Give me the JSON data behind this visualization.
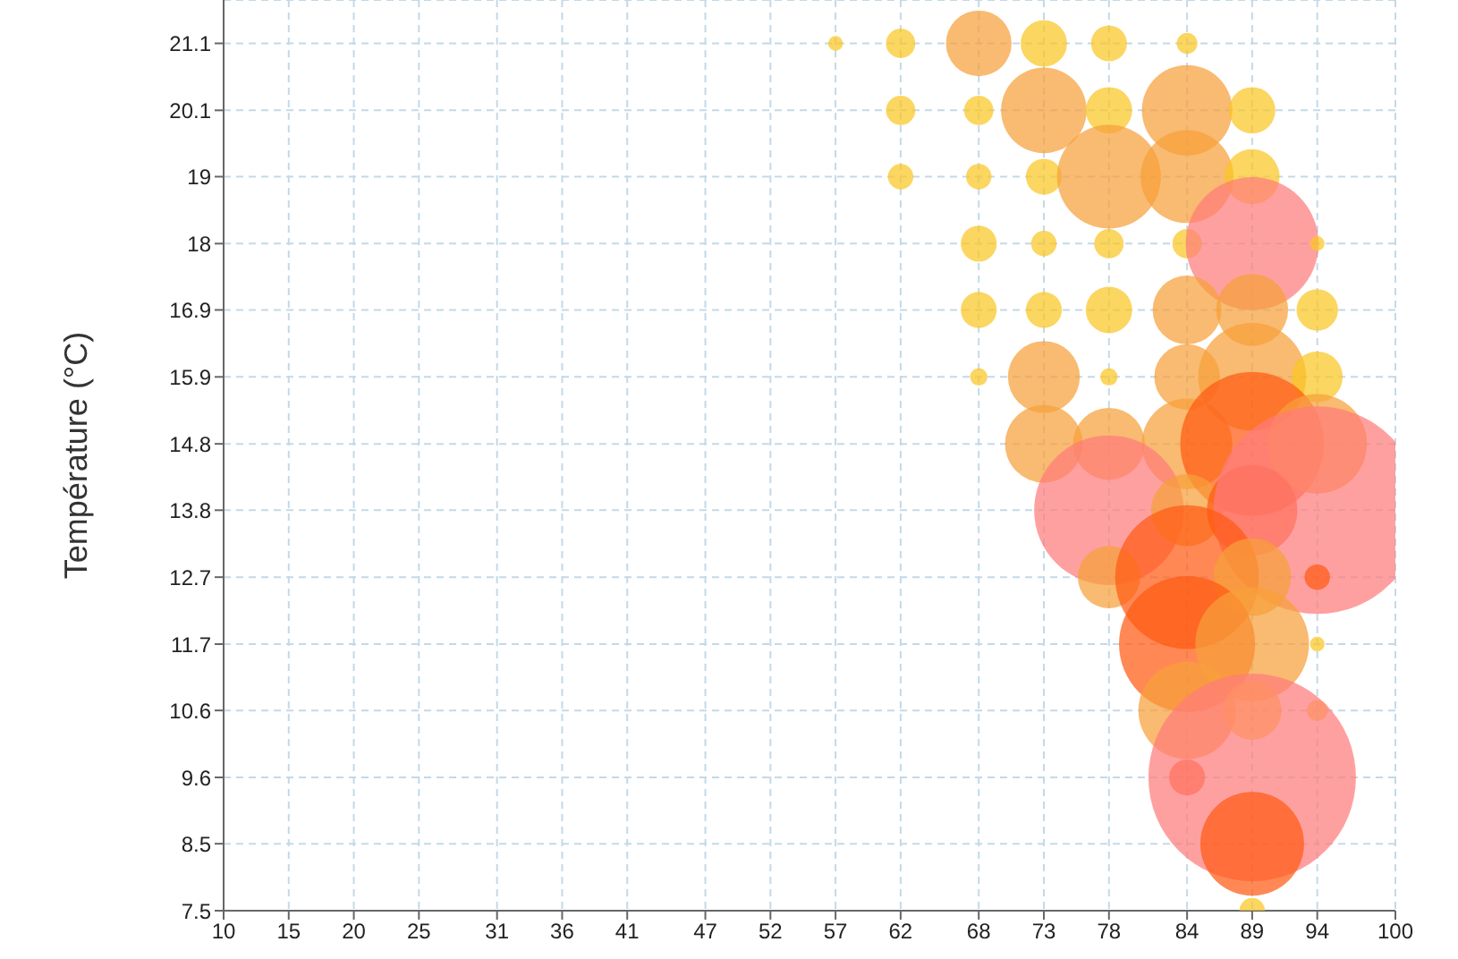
{
  "chart_data": {
    "type": "bubble",
    "ylabel": "Température (°C)",
    "x": [
      57,
      62,
      68,
      73,
      78,
      84,
      62,
      68,
      73,
      78,
      84,
      89,
      62,
      68,
      73,
      78,
      84,
      89,
      68,
      73,
      78,
      84,
      89,
      94,
      68,
      73,
      78,
      84,
      89,
      94,
      68,
      73,
      78,
      84,
      89,
      94,
      73,
      78,
      84,
      89,
      94,
      78,
      84,
      89,
      94,
      78,
      84,
      89,
      94,
      84,
      89,
      94,
      84,
      89,
      94,
      84,
      89,
      89,
      89
    ],
    "values": [
      21.1,
      21.1,
      21.1,
      21.1,
      21.1,
      21.1,
      20.05,
      20.05,
      20.05,
      20.05,
      20.05,
      20.05,
      19.01,
      19.01,
      19.01,
      19.01,
      19.01,
      19.01,
      17.96,
      17.96,
      17.96,
      17.96,
      17.96,
      17.96,
      16.92,
      16.92,
      16.92,
      16.92,
      16.92,
      16.92,
      15.87,
      15.87,
      15.87,
      15.87,
      15.87,
      15.87,
      14.82,
      14.82,
      14.82,
      14.82,
      14.82,
      13.78,
      13.78,
      13.78,
      13.78,
      12.73,
      12.73,
      12.73,
      12.73,
      11.68,
      11.68,
      11.68,
      10.64,
      10.64,
      10.64,
      9.59,
      9.59,
      8.55,
      7.5
    ],
    "sizes": [
      0.005,
      0.02,
      0.1,
      0.05,
      0.03,
      0.01,
      0.02,
      0.02,
      0.17,
      0.05,
      0.19,
      0.05,
      0.015,
      0.015,
      0.03,
      0.25,
      0.2,
      0.07,
      0.03,
      0.015,
      0.02,
      0.02,
      0.41,
      0.005,
      0.03,
      0.03,
      0.05,
      0.11,
      0.12,
      0.04,
      0.007,
      0.12,
      0.007,
      0.1,
      0.27,
      0.06,
      0.14,
      0.12,
      0.19,
      0.48,
      0.23,
      0.52,
      0.12,
      0.19,
      1,
      0.09,
      0.48,
      0.14,
      0.015,
      0.43,
      0.3,
      0.005,
      0.22,
      0.08,
      0.01,
      0.03,
      1,
      0.25,
      0.015
    ],
    "colors": [
      "#f9c623",
      "#f9c623",
      "#f7a03a",
      "#f9c623",
      "#f9c623",
      "#f9c623",
      "#f9c623",
      "#f9c623",
      "#f7a03a",
      "#f9c623",
      "#f7a03a",
      "#f9c623",
      "#f9c623",
      "#f9c623",
      "#f9c623",
      "#f7a03a",
      "#f7a03a",
      "#f9c623",
      "#f9c623",
      "#f9c623",
      "#f9c623",
      "#f9c623",
      "#ff7b7b",
      "#f9c623",
      "#f9c623",
      "#f9c623",
      "#f9c623",
      "#f7a03a",
      "#f7a03a",
      "#f9c623",
      "#f9c623",
      "#f7a03a",
      "#f9c623",
      "#f7a03a",
      "#f7a03a",
      "#f9c623",
      "#f7a03a",
      "#f7a03a",
      "#f7a03a",
      "#ff5a14",
      "#f7a03a",
      "#ff7b7b",
      "#f7a03a",
      "#ff5a14",
      "#ff7b7b",
      "#f7a03a",
      "#ff5a14",
      "#f7a03a",
      "#ff5a14",
      "#ff5a14",
      "#f7a03a",
      "#f9c623",
      "#f7a03a",
      "#f9c623",
      "#f9c623",
      "#ff5a14",
      "#ff7b7b",
      "#ff5a14",
      "#f9c623"
    ],
    "xlim": [
      10,
      100
    ],
    "xticks": [
      10,
      15,
      20,
      25,
      31,
      36,
      41,
      47,
      52,
      57,
      62,
      68,
      73,
      78,
      84,
      89,
      94,
      100
    ],
    "ylim": [
      7.5,
      21.78
    ],
    "yticks": [
      7.5,
      {
        "value": 8.55,
        "label": "8.5"
      },
      {
        "value": 9.59,
        "label": "9.6"
      },
      {
        "value": 10.64,
        "label": "10.6"
      },
      {
        "value": 11.68,
        "label": "11.7"
      },
      {
        "value": 12.73,
        "label": "12.7"
      },
      {
        "value": 13.78,
        "label": "13.8"
      },
      {
        "value": 14.82,
        "label": "14.8"
      },
      {
        "value": 15.87,
        "label": "15.9"
      },
      {
        "value": 16.92,
        "label": "16.9"
      },
      {
        "value": 17.96,
        "label": "18"
      },
      {
        "value": 19.01,
        "label": "19"
      },
      {
        "value": 20.05,
        "label": "20.1"
      },
      21.1
    ],
    "grid": true
  }
}
